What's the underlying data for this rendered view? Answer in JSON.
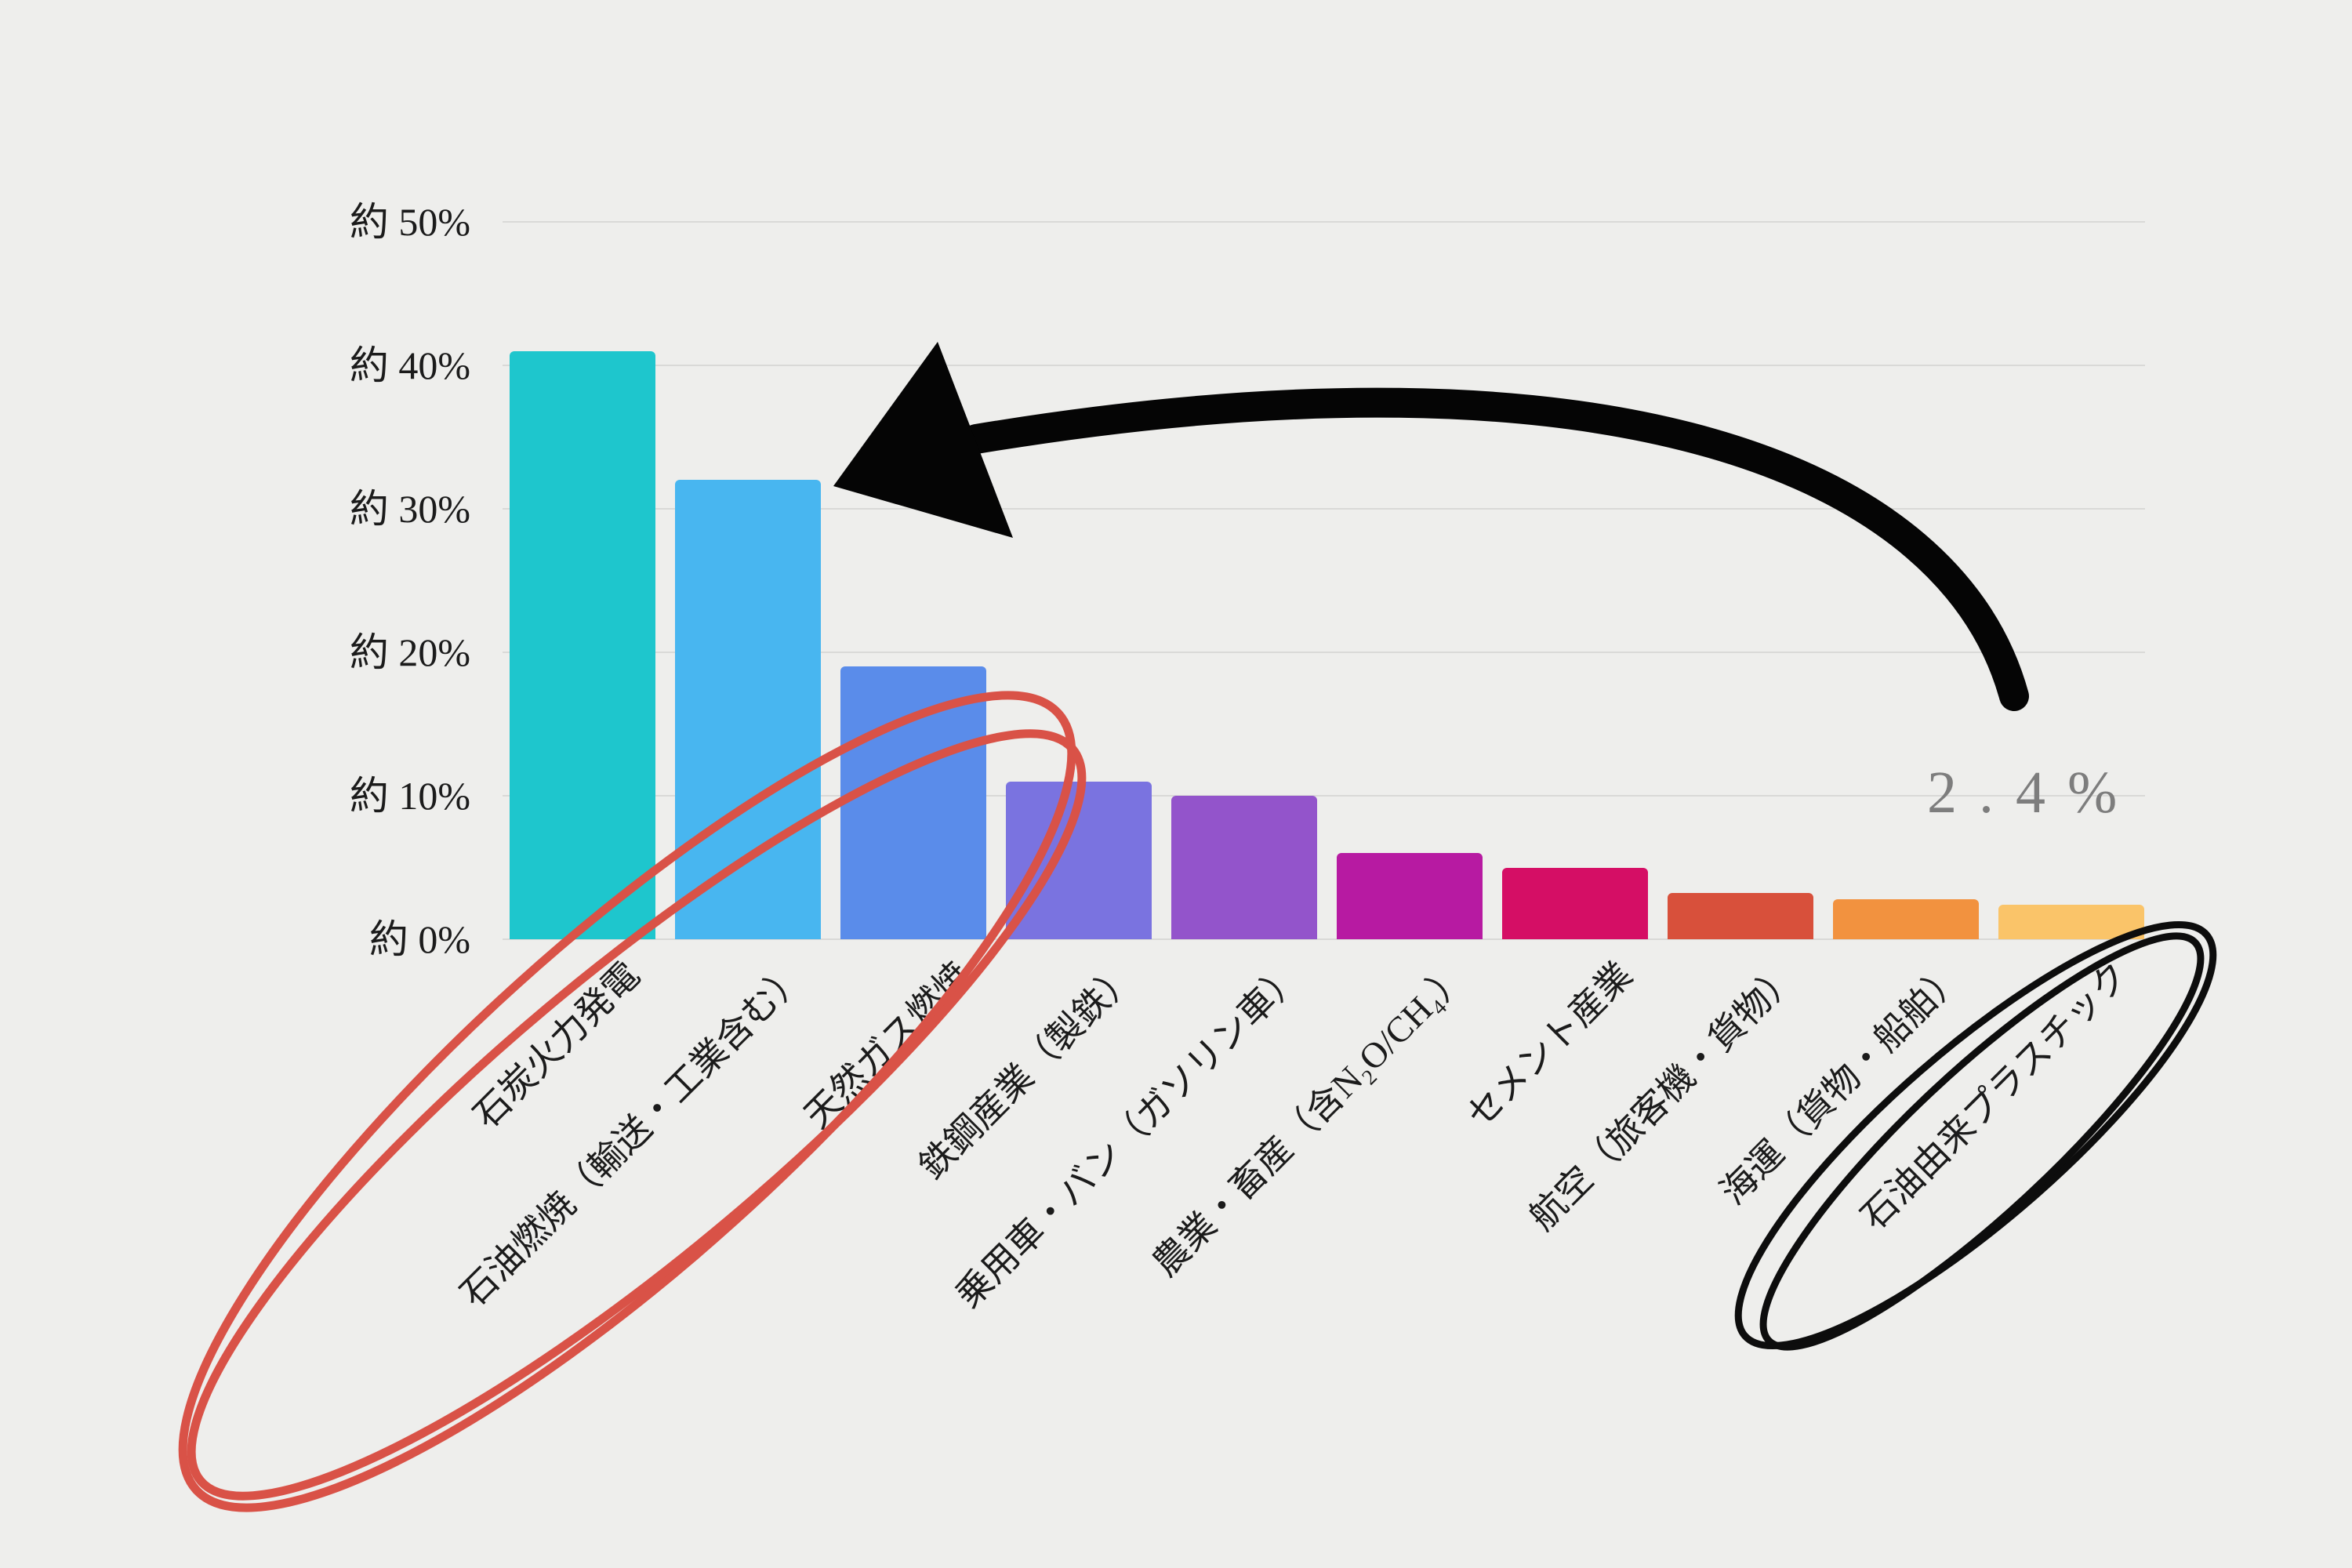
{
  "page": {
    "background": "#eeeeec"
  },
  "chart_data": {
    "type": "bar",
    "title": "",
    "categories": [
      "石炭火力発電",
      "石油燃焼（輸送・工業含む）",
      "天然ガス燃焼",
      "鉄鋼産業（製鉄）",
      "乗用車・バン（ガソリン車）",
      "農業・畜産（含N₂O/CH₄）",
      "セメント産業",
      "航空（旅客機・貨物）",
      "海運（貨物・船舶）",
      "石油由来プラスチック"
    ],
    "values": [
      41,
      32,
      19,
      11,
      10,
      6,
      5,
      3.2,
      2.8,
      2.4
    ],
    "bar_colors": [
      "#1ec6cd",
      "#48b6f0",
      "#5a8cea",
      "#7a73e0",
      "#9354cb",
      "#b71aa2",
      "#d50e65",
      "#d8503b",
      "#f2923f",
      "#fac469"
    ],
    "ylim": [
      0,
      50
    ],
    "ytick_step": 10,
    "ytick_labels": [
      "約 0%",
      "約 10%",
      "約 20%",
      "約 30%",
      "約 40%",
      "約 50%"
    ],
    "grid": true,
    "legend": false,
    "xlabel": "",
    "ylabel": ""
  },
  "annotations": {
    "value_callout": "2.4%",
    "callout_color": "#7d7d7d",
    "arrow_color": "#050505",
    "red_ellipse_color": "#d95247",
    "black_ellipse_color": "#0d0d0d",
    "grid_color": "#d9d9d7",
    "axis_text_color": "#1b1b1b"
  }
}
